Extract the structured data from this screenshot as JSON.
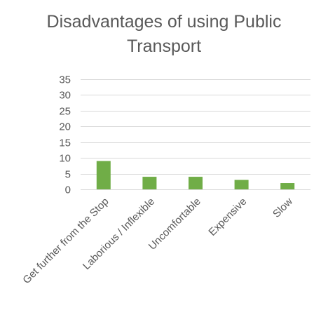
{
  "chart_data": {
    "type": "bar",
    "title_lines": [
      "Disadvantages of using Public",
      "Transport"
    ],
    "categories": [
      "Get further from the Stop",
      "Laborious / Inflexible",
      "Uncomfortable",
      "Expensive",
      "Slow"
    ],
    "values": [
      9,
      4,
      4,
      3,
      2
    ],
    "yticks": [
      "0",
      "5",
      "10",
      "15",
      "20",
      "25",
      "30",
      "35"
    ],
    "ylim": [
      0,
      35
    ],
    "grid": true,
    "legend": "none",
    "colors": {
      "bar": "#70ad47",
      "grid": "#d9d9d9",
      "text": "#595959"
    }
  }
}
